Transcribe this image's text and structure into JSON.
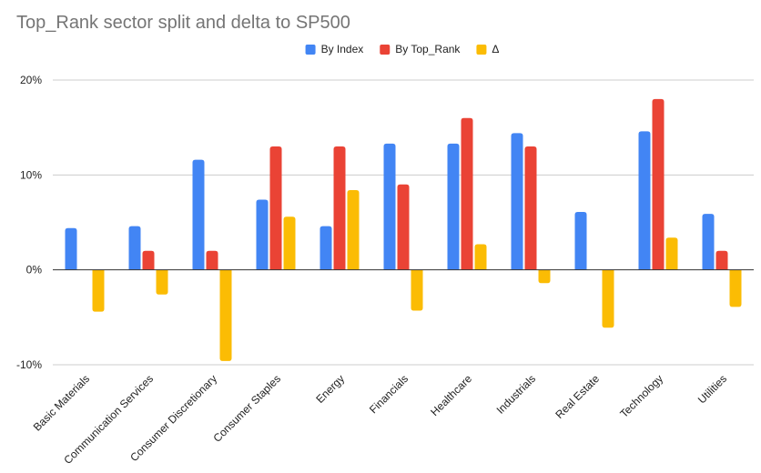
{
  "chart_data": {
    "type": "bar",
    "title": "Top_Rank sector split and delta to SP500",
    "xlabel": "",
    "ylabel": "",
    "ylim": [
      -10,
      20
    ],
    "yticks": [
      -10,
      0,
      10,
      20
    ],
    "ytick_labels": [
      "-10%",
      "0%",
      "10%",
      "20%"
    ],
    "grid": true,
    "legend_position": "top",
    "categories": [
      "Basic Materials",
      "Communication Services",
      "Consumer Discretionary",
      "Consumer Staples",
      "Energy",
      "Financials",
      "Healthcare",
      "Industrials",
      "Real Estate",
      "Technology",
      "Utilities"
    ],
    "series": [
      {
        "name": "By Index",
        "color": "#4285f4",
        "values": [
          4.4,
          4.6,
          11.6,
          7.4,
          4.6,
          13.3,
          13.3,
          14.4,
          6.1,
          14.6,
          5.9
        ]
      },
      {
        "name": "By Top_Rank",
        "color": "#ea4335",
        "values": [
          0,
          2,
          2,
          13,
          13,
          9,
          16,
          13,
          0,
          18,
          2
        ]
      },
      {
        "name": "Δ",
        "color": "#fbbc04",
        "values": [
          -4.4,
          -2.6,
          -9.6,
          5.6,
          8.4,
          -4.3,
          2.7,
          -1.4,
          -6.1,
          3.4,
          -3.9
        ]
      }
    ]
  }
}
